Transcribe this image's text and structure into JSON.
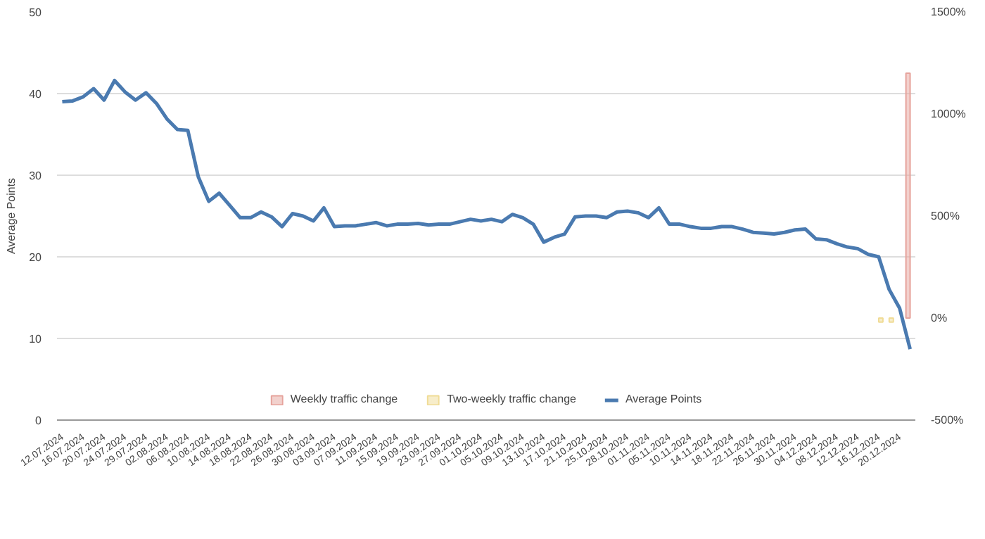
{
  "chart_data": {
    "type": "line",
    "ylabel": "Average Points",
    "categories": [
      "12.07.2024",
      null,
      "16.07.2024",
      null,
      "20.07.2024",
      null,
      "24.07.2024",
      null,
      "29.07.2024",
      null,
      "02.08.2024",
      null,
      "06.08.2024",
      null,
      "10.08.2024",
      null,
      "14.08.2024",
      null,
      "18.08.2024",
      null,
      "22.08.2024",
      null,
      "26.08.2024",
      null,
      "30.08.2024",
      null,
      "03.09.2024",
      null,
      "07.09.2024",
      null,
      "11.09.2024",
      null,
      "15.09.2024",
      null,
      "19.09.2024",
      null,
      "23.09.2024",
      null,
      "27.09.2024",
      null,
      "01.10.2024",
      null,
      "05.10.2024",
      null,
      "09.10.2024",
      null,
      "13.10.2024",
      null,
      "17.10.2024",
      null,
      "21.10.2024",
      null,
      "25.10.2024",
      null,
      "28.10.2024",
      null,
      "01.11.2024",
      null,
      "05.11.2024",
      null,
      "10.11.2024",
      null,
      "14.11.2024",
      null,
      "18.11.2024",
      null,
      "22.11.2024",
      null,
      "26.11.2024",
      null,
      "30.11.2024",
      null,
      "04.12.2024",
      null,
      "08.12.2024",
      null,
      "12.12.2024",
      null,
      "16.12.2024",
      null,
      "20.12.2024",
      null
    ],
    "series": [
      {
        "name": "Weekly traffic change",
        "type": "bar",
        "axis": "y2",
        "color": "#e6a39c",
        "values": [
          null,
          null,
          null,
          null,
          null,
          null,
          null,
          null,
          null,
          null,
          null,
          null,
          null,
          null,
          null,
          null,
          null,
          null,
          null,
          null,
          null,
          null,
          null,
          null,
          null,
          null,
          null,
          null,
          null,
          null,
          null,
          null,
          null,
          null,
          null,
          null,
          null,
          null,
          null,
          null,
          null,
          null,
          null,
          null,
          null,
          null,
          null,
          null,
          null,
          null,
          null,
          null,
          null,
          null,
          null,
          null,
          null,
          null,
          null,
          null,
          null,
          null,
          null,
          null,
          null,
          null,
          null,
          null,
          null,
          null,
          null,
          null,
          null,
          null,
          null,
          null,
          null,
          null,
          null,
          null,
          null,
          1200
        ]
      },
      {
        "name": "Two-weekly traffic change",
        "type": "bar",
        "axis": "y2",
        "color": "#f0dc96",
        "values": [
          null,
          null,
          null,
          null,
          null,
          null,
          null,
          null,
          null,
          null,
          null,
          null,
          null,
          null,
          null,
          null,
          null,
          null,
          null,
          null,
          null,
          null,
          null,
          null,
          null,
          null,
          null,
          null,
          null,
          null,
          null,
          null,
          null,
          null,
          null,
          null,
          null,
          null,
          null,
          null,
          null,
          null,
          null,
          null,
          null,
          null,
          null,
          null,
          null,
          null,
          null,
          null,
          null,
          null,
          null,
          null,
          null,
          null,
          null,
          null,
          null,
          null,
          null,
          null,
          null,
          null,
          null,
          null,
          null,
          null,
          null,
          null,
          null,
          null,
          null,
          null,
          null,
          null,
          -20,
          -20,
          null,
          null
        ]
      },
      {
        "name": "Average Points",
        "color": "#4a7ab0",
        "values": [
          39.0,
          39.1,
          39.6,
          40.6,
          39.2,
          41.6,
          40.2,
          39.2,
          40.1,
          38.8,
          36.9,
          35.6,
          35.5,
          29.8,
          26.8,
          27.8,
          26.3,
          24.8,
          24.8,
          25.5,
          24.9,
          23.7,
          25.3,
          25.0,
          24.4,
          26.0,
          23.7,
          23.8,
          23.8,
          24.0,
          24.2,
          23.8,
          24.0,
          24.0,
          24.1,
          23.9,
          24.0,
          24.0,
          24.3,
          24.6,
          24.4,
          24.6,
          24.3,
          25.2,
          24.8,
          24.0,
          21.8,
          22.4,
          22.8,
          24.9,
          25.0,
          25.0,
          24.8,
          25.5,
          25.6,
          25.4,
          24.8,
          26.0,
          24.0,
          24.0,
          23.7,
          23.5,
          23.5,
          23.7,
          23.7,
          23.4,
          23.0,
          22.9,
          22.8,
          23.0,
          23.3,
          23.4,
          22.2,
          22.1,
          21.6,
          21.2,
          21.0,
          20.3,
          20.0,
          16.0,
          13.7,
          8.7
        ]
      }
    ],
    "ylim": [
      0,
      50
    ],
    "yticks": [
      0,
      10,
      20,
      30,
      40,
      50
    ],
    "y2lim": [
      -500,
      1500
    ],
    "y2ticks": [
      {
        "value": -500,
        "label": "-500%"
      },
      {
        "value": 0,
        "label": "0%"
      },
      {
        "value": 500,
        "label": "500%"
      },
      {
        "value": 1000,
        "label": "1000%"
      },
      {
        "value": 1500,
        "label": "1500%"
      }
    ],
    "grid": "y",
    "legend": "bottom",
    "marker": "none",
    "line_style": "solid"
  }
}
